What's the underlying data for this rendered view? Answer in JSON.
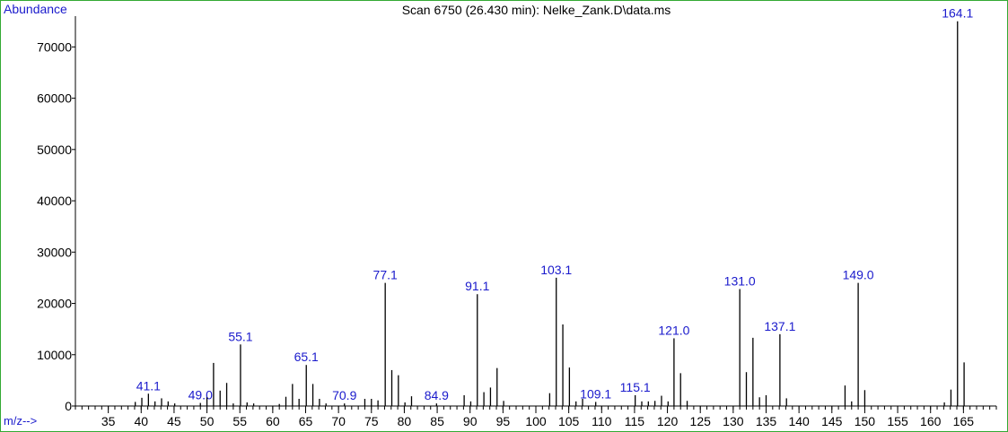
{
  "chart_data": {
    "type": "bar",
    "title": "Scan 6750 (26.430 min): Nelke_Zank.D\\data.ms",
    "ylabel": "Abundance",
    "xlabel": "m/z-->",
    "xlim": [
      30,
      170
    ],
    "ylim": [
      0,
      76000
    ],
    "x_ticks": [
      35,
      40,
      45,
      50,
      55,
      60,
      65,
      70,
      75,
      80,
      85,
      90,
      95,
      100,
      105,
      110,
      115,
      120,
      125,
      130,
      135,
      140,
      145,
      150,
      155,
      160,
      165
    ],
    "y_ticks": [
      0,
      10000,
      20000,
      30000,
      40000,
      50000,
      60000,
      70000
    ],
    "peaks": [
      {
        "mz": 39.1,
        "abundance": 800
      },
      {
        "mz": 40.1,
        "abundance": 1600
      },
      {
        "mz": 41.1,
        "abundance": 2400,
        "label": "41.1"
      },
      {
        "mz": 42.1,
        "abundance": 900
      },
      {
        "mz": 43.1,
        "abundance": 1500
      },
      {
        "mz": 44.1,
        "abundance": 900
      },
      {
        "mz": 45.1,
        "abundance": 500
      },
      {
        "mz": 49.0,
        "abundance": 600,
        "label": "49.0"
      },
      {
        "mz": 50.0,
        "abundance": 1700
      },
      {
        "mz": 51.0,
        "abundance": 8400
      },
      {
        "mz": 52.0,
        "abundance": 3000
      },
      {
        "mz": 53.0,
        "abundance": 4500
      },
      {
        "mz": 54.0,
        "abundance": 500
      },
      {
        "mz": 55.1,
        "abundance": 12000,
        "label": "55.1"
      },
      {
        "mz": 56.1,
        "abundance": 700
      },
      {
        "mz": 57.1,
        "abundance": 500
      },
      {
        "mz": 61.0,
        "abundance": 400
      },
      {
        "mz": 62.0,
        "abundance": 1800
      },
      {
        "mz": 63.0,
        "abundance": 4300
      },
      {
        "mz": 64.0,
        "abundance": 1400
      },
      {
        "mz": 65.1,
        "abundance": 8000,
        "label": "65.1"
      },
      {
        "mz": 66.1,
        "abundance": 4300
      },
      {
        "mz": 67.1,
        "abundance": 1400
      },
      {
        "mz": 68.1,
        "abundance": 500
      },
      {
        "mz": 70.9,
        "abundance": 500,
        "label": "70.9"
      },
      {
        "mz": 74.0,
        "abundance": 1400
      },
      {
        "mz": 75.0,
        "abundance": 1400
      },
      {
        "mz": 76.0,
        "abundance": 1100
      },
      {
        "mz": 77.1,
        "abundance": 24000,
        "label": "77.1"
      },
      {
        "mz": 78.1,
        "abundance": 7000
      },
      {
        "mz": 79.1,
        "abundance": 6000
      },
      {
        "mz": 80.1,
        "abundance": 700
      },
      {
        "mz": 81.1,
        "abundance": 1900
      },
      {
        "mz": 84.9,
        "abundance": 500,
        "label": "84.9"
      },
      {
        "mz": 89.1,
        "abundance": 2100
      },
      {
        "mz": 90.1,
        "abundance": 900
      },
      {
        "mz": 91.1,
        "abundance": 21800,
        "label": "91.1"
      },
      {
        "mz": 92.1,
        "abundance": 2700
      },
      {
        "mz": 93.1,
        "abundance": 3600
      },
      {
        "mz": 94.1,
        "abundance": 7400
      },
      {
        "mz": 95.1,
        "abundance": 1000
      },
      {
        "mz": 102.1,
        "abundance": 2500
      },
      {
        "mz": 103.1,
        "abundance": 25000,
        "label": "103.1"
      },
      {
        "mz": 104.1,
        "abundance": 15900
      },
      {
        "mz": 105.1,
        "abundance": 7500
      },
      {
        "mz": 106.1,
        "abundance": 900
      },
      {
        "mz": 107.1,
        "abundance": 1400
      },
      {
        "mz": 109.1,
        "abundance": 800,
        "label": "109.1"
      },
      {
        "mz": 115.1,
        "abundance": 2100,
        "label": "115.1"
      },
      {
        "mz": 116.1,
        "abundance": 900
      },
      {
        "mz": 117.1,
        "abundance": 900
      },
      {
        "mz": 118.1,
        "abundance": 1000
      },
      {
        "mz": 119.1,
        "abundance": 2000
      },
      {
        "mz": 120.1,
        "abundance": 900
      },
      {
        "mz": 121.0,
        "abundance": 13200,
        "label": "121.0"
      },
      {
        "mz": 122.0,
        "abundance": 6400
      },
      {
        "mz": 123.0,
        "abundance": 1000
      },
      {
        "mz": 131.0,
        "abundance": 22800,
        "label": "131.0"
      },
      {
        "mz": 132.0,
        "abundance": 6600
      },
      {
        "mz": 133.0,
        "abundance": 13300
      },
      {
        "mz": 134.0,
        "abundance": 1700
      },
      {
        "mz": 135.0,
        "abundance": 2100
      },
      {
        "mz": 137.1,
        "abundance": 14000,
        "label": "137.1"
      },
      {
        "mz": 138.1,
        "abundance": 1500
      },
      {
        "mz": 147.0,
        "abundance": 4000
      },
      {
        "mz": 148.0,
        "abundance": 900
      },
      {
        "mz": 149.0,
        "abundance": 24000,
        "label": "149.0"
      },
      {
        "mz": 150.0,
        "abundance": 3100
      },
      {
        "mz": 162.1,
        "abundance": 700
      },
      {
        "mz": 163.1,
        "abundance": 3200
      },
      {
        "mz": 164.1,
        "abundance": 75000,
        "label": "164.1"
      },
      {
        "mz": 165.1,
        "abundance": 8500
      }
    ]
  }
}
